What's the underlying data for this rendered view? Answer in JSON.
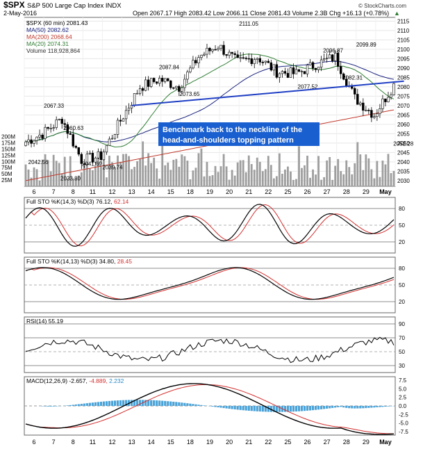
{
  "header": {
    "symbol": "$SPX",
    "name": "S&P 500 Large Cap Index",
    "exchange": "INDX",
    "date": "2-May-2016",
    "quote": "Open 2067.17  High 2083.42  Low 2066.11  Close 2081.43  Volume 2.3B  Chg +16.13 (+0.78%)",
    "up_arrow": "▲",
    "watermark": "© StockCharts.com"
  },
  "legend": {
    "spx": "$SPX (60 min) 2081.43",
    "ma50": "MA(50) 2082.62",
    "ma200": "MA(200) 2068.64",
    "ma20": "MA(20) 2074.31",
    "volume": "Volume 118,928,864"
  },
  "annotation": {
    "line1": "Benchmark back to the neckline of the",
    "line2": "head-and-shoulders topping pattern"
  },
  "panels": {
    "sto1_label": "Full STO %K(14,3) %D(3) 76.12,",
    "sto1_d": "62.14",
    "sto2_label": "Full STO %K(14,13) %D(3) 34.80,",
    "sto2_d": "28.45",
    "rsi_label": "RSI(14) 55.19",
    "macd_label": "MACD(12,26,9) -2.657,",
    "macd_signal": "-4.889,",
    "macd_hist": "2.232"
  },
  "colors": {
    "price_up": "#ffffff",
    "price_down": "#000000",
    "ma50": "#1a237e",
    "ma200": "#c0392b",
    "ma20": "#2e7d32",
    "neckline": "#1f3fc4",
    "volume": "#9e9e9e",
    "sto_k": "#000000",
    "sto_d": "#d32f2f",
    "macd_hist": "#4aa3d8",
    "annotation_bg": "#1a5fd0"
  },
  "chart_data": {
    "type": "candlestick",
    "x_day_labels": [
      "6",
      "7",
      "8",
      "11",
      "12",
      "13",
      "14",
      "15",
      "18",
      "19",
      "20",
      "21",
      "22",
      "25",
      "26",
      "27",
      "28",
      "29",
      "May"
    ],
    "price_axis": {
      "ticks": [
        2030,
        2035,
        2040,
        2045,
        2050,
        2055,
        2060,
        2065,
        2070,
        2075,
        2080,
        2085,
        2090,
        2095,
        2100,
        2105,
        2110,
        2115
      ],
      "range": [
        2027,
        2117
      ]
    },
    "volume_axis": {
      "ticks": [
        "25M",
        "50M",
        "75M",
        "100M",
        "125M",
        "150M",
        "175M",
        "200M"
      ]
    },
    "price_labels": [
      {
        "value": "2042.56",
        "anchor": 2042.56,
        "day": 0.2
      },
      {
        "value": "2067.33",
        "anchor": 2067.33,
        "day": 1.0
      },
      {
        "value": "2033.80",
        "anchor": 2033.8,
        "day": 1.85
      },
      {
        "value": "2060.63",
        "anchor": 2060.63,
        "day": 2.0
      },
      {
        "value": "2041.69",
        "anchor": 2041.69,
        "day": 2.95
      },
      {
        "value": "2039.74",
        "anchor": 2039.74,
        "day": 4.0
      },
      {
        "value": "2087.84",
        "anchor": 2087.84,
        "day": 6.9
      },
      {
        "value": "2073.65",
        "anchor": 2073.65,
        "day": 7.95
      },
      {
        "value": "2111.05",
        "anchor": 2111.05,
        "day": 11.0
      },
      {
        "value": "2077.52",
        "anchor": 2077.52,
        "day": 14.0
      },
      {
        "value": "2096.87",
        "anchor": 2096.87,
        "day": 15.3
      },
      {
        "value": "2082.31",
        "anchor": 2082.31,
        "day": 16.3
      },
      {
        "value": "2099.89",
        "anchor": 2099.89,
        "day": 17.0
      },
      {
        "value": "2052.28",
        "anchor": 2052.28,
        "day": 18.9
      }
    ],
    "sto_ticks": [
      20,
      50,
      80
    ],
    "rsi_ticks": [
      30,
      50,
      70,
      90
    ],
    "macd_ticks": [
      -7.5,
      -5.0,
      -2.5,
      0.0,
      2.5,
      5.0,
      7.5
    ],
    "daily_closes": [
      2055,
      2063,
      2041,
      2043,
      2062,
      2080,
      2084,
      2080,
      2096,
      2102,
      2093,
      2096,
      2088,
      2087,
      2092,
      2096,
      2074,
      2065,
      2081
    ],
    "neckline": {
      "from": [
        5.0,
        2070
      ],
      "to": [
        18.95,
        2083
      ]
    }
  }
}
